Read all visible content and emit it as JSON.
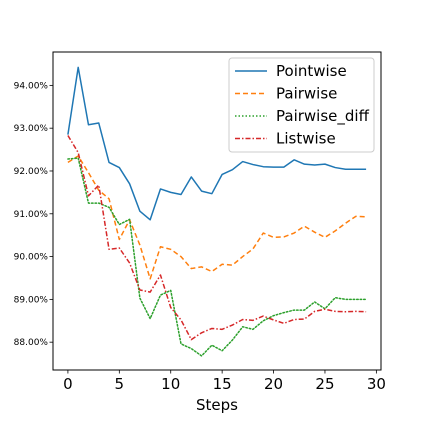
{
  "chart_data": {
    "type": "line",
    "title": "",
    "xlabel": "Steps",
    "ylabel": "",
    "xlim": [
      -1.45,
      30.45
    ],
    "ylim": [
      87.35,
      94.78
    ],
    "x_ticks": [
      0,
      5,
      10,
      15,
      20,
      25,
      30
    ],
    "x_tick_labels": [
      "0",
      "5",
      "10",
      "15",
      "20",
      "25",
      "30"
    ],
    "y_ticks": [
      88,
      89,
      90,
      91,
      92,
      93,
      94
    ],
    "y_tick_labels": [
      "88.00%",
      "89.00%",
      "90.00%",
      "91.00%",
      "92.00%",
      "93.00%",
      "94.00%"
    ],
    "grid": false,
    "legend_position": "top-right",
    "x": [
      0,
      1,
      2,
      3,
      4,
      5,
      6,
      7,
      8,
      9,
      10,
      11,
      12,
      13,
      14,
      15,
      16,
      17,
      18,
      19,
      20,
      21,
      22,
      23,
      24,
      25,
      26,
      27,
      28,
      29
    ],
    "series": [
      {
        "name": "Pointwise",
        "color": "#1f77b4",
        "style": "solid",
        "values": [
          92.85,
          94.42,
          93.08,
          93.12,
          92.2,
          92.08,
          91.7,
          91.06,
          90.86,
          91.58,
          91.5,
          91.45,
          91.86,
          91.53,
          91.47,
          91.92,
          92.03,
          92.22,
          92.15,
          92.1,
          92.09,
          92.09,
          92.26,
          92.16,
          92.14,
          92.16,
          92.08,
          92.04,
          92.04,
          92.04
        ]
      },
      {
        "name": "Pairwise",
        "color": "#ff7f0e",
        "style": "dashed",
        "values": [
          92.2,
          92.35,
          91.96,
          91.55,
          91.35,
          90.4,
          90.86,
          90.27,
          89.48,
          90.23,
          90.17,
          90.0,
          89.72,
          89.76,
          89.65,
          89.82,
          89.8,
          90.0,
          90.18,
          90.55,
          90.45,
          90.46,
          90.55,
          90.71,
          90.57,
          90.45,
          90.6,
          90.78,
          90.94,
          90.93
        ]
      },
      {
        "name": "Pairwise_diff",
        "color": "#2ca02c",
        "style": "dotted",
        "values": [
          92.28,
          92.3,
          91.25,
          91.25,
          91.15,
          90.75,
          90.87,
          89.03,
          88.55,
          89.1,
          89.21,
          87.96,
          87.85,
          87.68,
          87.93,
          87.8,
          88.05,
          88.36,
          88.3,
          88.5,
          88.62,
          88.69,
          88.75,
          88.75,
          88.94,
          88.78,
          89.04,
          89.0,
          89.0,
          89.0
        ]
      },
      {
        "name": "Listwise",
        "color": "#d62728",
        "style": "dashdot",
        "values": [
          92.83,
          92.43,
          91.42,
          91.67,
          90.17,
          90.2,
          89.85,
          89.22,
          89.17,
          89.57,
          88.81,
          88.52,
          88.06,
          88.22,
          88.32,
          88.3,
          88.4,
          88.53,
          88.51,
          88.61,
          88.52,
          88.44,
          88.53,
          88.54,
          88.72,
          88.77,
          88.72,
          88.71,
          88.72,
          88.71
        ]
      }
    ]
  }
}
